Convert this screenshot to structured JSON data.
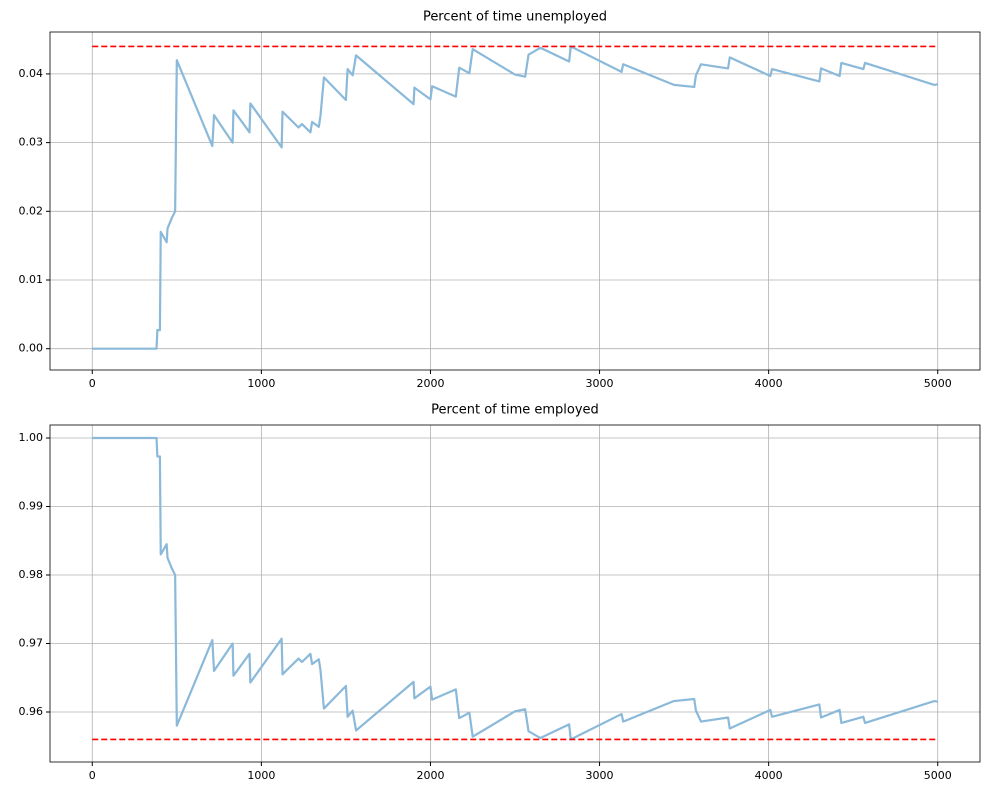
{
  "chart_data": [
    {
      "type": "line",
      "title": "Percent of time unemployed",
      "xlim": [
        -250,
        5250
      ],
      "ylim": [
        -0.0031,
        0.0461
      ],
      "xticks": [
        0,
        1000,
        2000,
        3000,
        4000,
        5000
      ],
      "yticks": [
        {
          "value": 0,
          "label": "0.00"
        },
        {
          "value": 0.01,
          "label": "0.01"
        },
        {
          "value": 0.02,
          "label": "0.02"
        },
        {
          "value": 0.03,
          "label": "0.03"
        },
        {
          "value": 0.04,
          "label": "0.04"
        }
      ],
      "grid": true,
      "series": [
        {
          "color": "#8bb9da",
          "linestyle": "solid",
          "x": [
            0,
            380,
            385,
            400,
            405,
            440,
            445,
            470,
            490,
            500,
            710,
            720,
            830,
            835,
            930,
            935,
            1120,
            1125,
            1220,
            1240,
            1290,
            1300,
            1340,
            1350,
            1370,
            1500,
            1510,
            1540,
            1560,
            1900,
            1905,
            2000,
            2010,
            2150,
            2170,
            2230,
            2250,
            2500,
            2560,
            2580,
            2650,
            2820,
            2830,
            3130,
            3140,
            3440,
            3560,
            3570,
            3600,
            3760,
            3770,
            4010,
            4020,
            4300,
            4310,
            4420,
            4430,
            4560,
            4570,
            4980,
            5000
          ],
          "values": [
            0,
            0,
            0.0027,
            0.0027,
            0.017,
            0.0155,
            0.0175,
            0.019,
            0.02,
            0.042,
            0.0295,
            0.034,
            0.03,
            0.0347,
            0.0315,
            0.0357,
            0.0293,
            0.0345,
            0.0322,
            0.0327,
            0.0315,
            0.033,
            0.0323,
            0.034,
            0.0395,
            0.0362,
            0.0407,
            0.0398,
            0.0427,
            0.0356,
            0.038,
            0.0363,
            0.0382,
            0.0367,
            0.0409,
            0.0401,
            0.0436,
            0.0399,
            0.0396,
            0.0428,
            0.0438,
            0.0418,
            0.044,
            0.0403,
            0.0414,
            0.0384,
            0.0381,
            0.0398,
            0.0414,
            0.0408,
            0.0424,
            0.0397,
            0.0407,
            0.0389,
            0.0408,
            0.0397,
            0.0416,
            0.0407,
            0.0416,
            0.0384,
            0.0385
          ]
        },
        {
          "color": "#ff0000",
          "linestyle": "dashed",
          "x": [
            0,
            5000
          ],
          "values": [
            0.044,
            0.044
          ]
        }
      ]
    },
    {
      "type": "line",
      "title": "Percent of time employed",
      "xlim": [
        -250,
        5250
      ],
      "ylim": [
        0.9527,
        1.0019
      ],
      "xticks": [
        0,
        1000,
        2000,
        3000,
        4000,
        5000
      ],
      "yticks": [
        {
          "value": 0.96,
          "label": "0.96"
        },
        {
          "value": 0.97,
          "label": "0.97"
        },
        {
          "value": 0.98,
          "label": "0.98"
        },
        {
          "value": 0.99,
          "label": "0.99"
        },
        {
          "value": 1,
          "label": "1.00"
        }
      ],
      "grid": true,
      "series": [
        {
          "color": "#8bb9da",
          "linestyle": "solid",
          "x": [
            0,
            380,
            385,
            400,
            405,
            440,
            445,
            470,
            490,
            500,
            710,
            720,
            830,
            835,
            930,
            935,
            1120,
            1125,
            1220,
            1240,
            1290,
            1300,
            1340,
            1350,
            1370,
            1500,
            1510,
            1540,
            1560,
            1900,
            1905,
            2000,
            2010,
            2150,
            2170,
            2230,
            2250,
            2500,
            2560,
            2580,
            2650,
            2820,
            2830,
            3130,
            3140,
            3440,
            3560,
            3570,
            3600,
            3760,
            3770,
            4010,
            4020,
            4300,
            4310,
            4420,
            4430,
            4560,
            4570,
            4980,
            5000
          ],
          "values": [
            1,
            1,
            0.9973,
            0.9973,
            0.983,
            0.9845,
            0.9825,
            0.981,
            0.98,
            0.958,
            0.9705,
            0.966,
            0.97,
            0.9653,
            0.9685,
            0.9643,
            0.9707,
            0.9655,
            0.9678,
            0.9673,
            0.9685,
            0.967,
            0.9677,
            0.966,
            0.9605,
            0.9638,
            0.9593,
            0.9602,
            0.9573,
            0.9644,
            0.962,
            0.9637,
            0.9618,
            0.9633,
            0.9591,
            0.9599,
            0.9564,
            0.9601,
            0.9604,
            0.9572,
            0.9562,
            0.9582,
            0.956,
            0.9597,
            0.9586,
            0.9616,
            0.9619,
            0.9602,
            0.9586,
            0.9592,
            0.9576,
            0.9603,
            0.9593,
            0.9611,
            0.9592,
            0.9603,
            0.9584,
            0.9593,
            0.9584,
            0.9616,
            0.9615
          ]
        },
        {
          "color": "#ff0000",
          "linestyle": "dashed",
          "x": [
            0,
            5000
          ],
          "values": [
            0.956,
            0.956
          ]
        }
      ]
    }
  ]
}
